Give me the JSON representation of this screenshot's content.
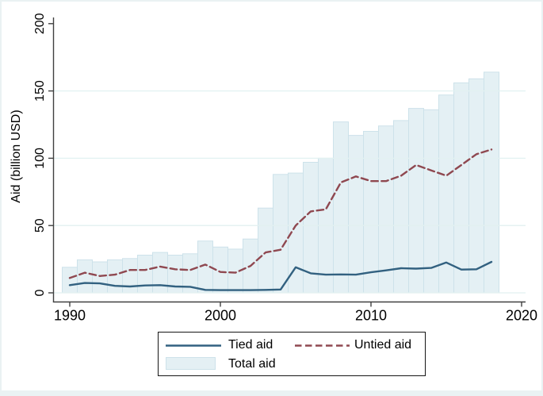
{
  "figure": {
    "background_color": "#ffffff",
    "frame_color": "#eaf2f3",
    "axis_color": "#404040",
    "gridline_color": "#e2f1f1",
    "text_color": "#000000"
  },
  "chart_data": {
    "type": "bar+line",
    "title": "",
    "xlabel": "",
    "ylabel": "Aid (billion USD)",
    "ylim": [
      0,
      200
    ],
    "yticks": [
      0,
      50,
      100,
      150,
      200
    ],
    "xticks": [
      1990,
      2000,
      2010,
      2020
    ],
    "grid": "horizontal",
    "legend_position": "bottom-center",
    "categories": [
      1990,
      1991,
      1992,
      1993,
      1994,
      1995,
      1996,
      1997,
      1998,
      1999,
      2000,
      2001,
      2002,
      2003,
      2004,
      2005,
      2006,
      2007,
      2008,
      2009,
      2010,
      2011,
      2012,
      2013,
      2014,
      2015,
      2016,
      2017,
      2018
    ],
    "series": [
      {
        "name": "Tied aid",
        "type": "line",
        "style": "solid",
        "color": "#326180",
        "values": [
          5.7,
          7.3,
          7.0,
          5.2,
          4.7,
          5.5,
          5.7,
          4.7,
          4.5,
          2.2,
          2.0,
          2.0,
          2.0,
          2.2,
          2.5,
          19.0,
          14.5,
          13.5,
          13.7,
          13.5,
          15.3,
          16.7,
          18.3,
          18.0,
          18.5,
          22.5,
          17.3,
          17.5,
          23.0
        ]
      },
      {
        "name": "Untied aid",
        "type": "line",
        "style": "dashed",
        "color": "#8f4850",
        "values": [
          11.0,
          15.0,
          12.5,
          13.5,
          17.0,
          17.0,
          19.5,
          17.5,
          17.0,
          21.0,
          15.5,
          15.0,
          20.0,
          30.0,
          32.0,
          50.0,
          60.5,
          62.0,
          82.0,
          86.5,
          83.0,
          83.0,
          87.0,
          95.0,
          91.0,
          87.0,
          95.0,
          103.0,
          106.5
        ]
      },
      {
        "name": "Total aid",
        "type": "bar",
        "color": "#e4f0f4",
        "border_color": "#cde2ea",
        "values": [
          19.0,
          24.5,
          23.0,
          24.5,
          25.5,
          28.0,
          30.0,
          28.0,
          29.0,
          38.5,
          34.0,
          32.5,
          40.0,
          63.0,
          88.0,
          89.0,
          97.0,
          100.0,
          127.0,
          117.0,
          120.0,
          124.0,
          128.0,
          137.0,
          136.0,
          147.0,
          156.0,
          159.0,
          164.0
        ]
      }
    ]
  }
}
